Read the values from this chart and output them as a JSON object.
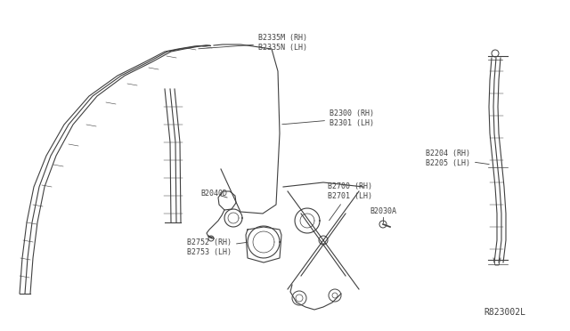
{
  "bg_color": "#ffffff",
  "diagram_id": "R823002L",
  "line_color": "#404040",
  "label_color": "#404040",
  "font_size": 6.0,
  "parts": {
    "sash_label": "B2335M (RH)\nB2335N (LH)",
    "glass_label": "B2300 (RH)\nB2301 (LH)",
    "run_label": "B2204 (RH)\nB2205 (LH)",
    "bracket_label": "B2040D",
    "regulator_label": "B2700 (RH)\nB2701 (LH)",
    "motor_label": "B2752 (RH)\nB2753 (LH)",
    "clip_label": "B2030A"
  }
}
